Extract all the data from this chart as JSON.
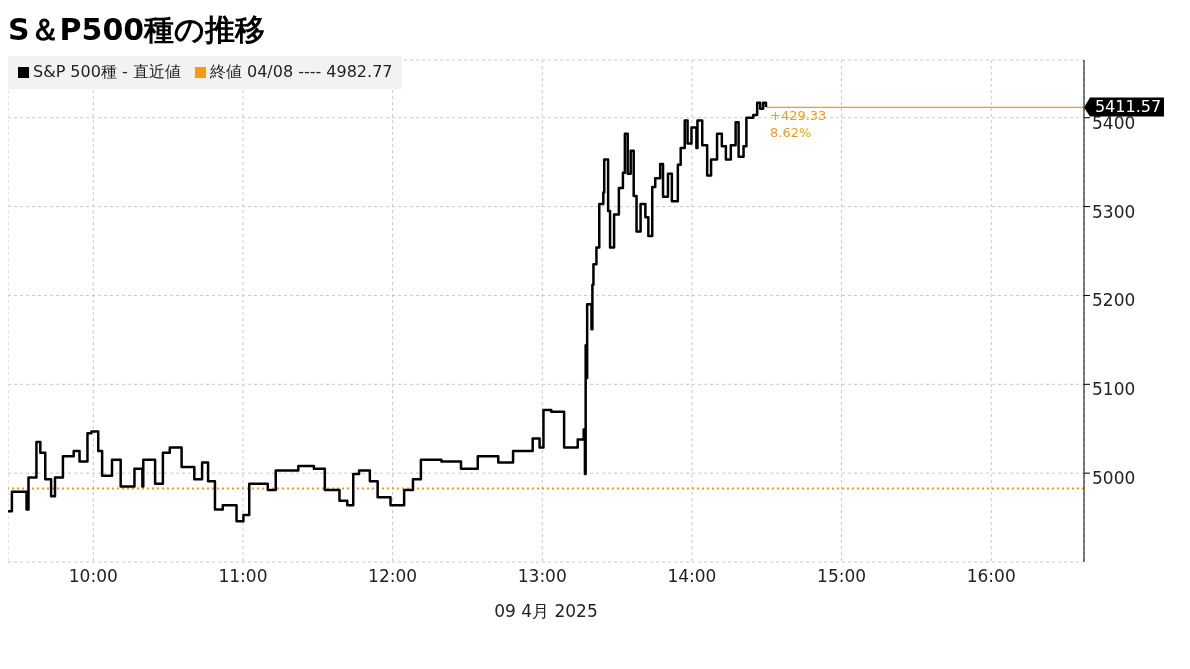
{
  "chart_data": {
    "type": "step",
    "title": "S＆P500種の推移",
    "xlabel": "09 4月 2025",
    "x": [
      9.43,
      9.456,
      9.554,
      9.567,
      9.62,
      9.646,
      9.679,
      9.718,
      9.744,
      9.797,
      9.869,
      9.908,
      9.961,
      9.987,
      10.033,
      10.059,
      10.125,
      10.183,
      10.275,
      10.328,
      10.334,
      10.413,
      10.465,
      10.511,
      10.59,
      10.675,
      10.727,
      10.767,
      10.813,
      10.865,
      10.957,
      11.003,
      11.042,
      11.166,
      11.219,
      11.37,
      11.474,
      11.547,
      11.645,
      11.697,
      11.737,
      11.776,
      11.848,
      11.9,
      11.986,
      12.077,
      12.136,
      12.189,
      12.326,
      12.457,
      12.569,
      12.706,
      12.805,
      12.936,
      12.982,
      13.008,
      13.06,
      13.146,
      13.237,
      13.277,
      13.285,
      13.29,
      13.296,
      13.3,
      13.329,
      13.335,
      13.342,
      13.362,
      13.381,
      13.408,
      13.414,
      13.44,
      13.453,
      13.48,
      13.512,
      13.539,
      13.552,
      13.571,
      13.591,
      13.611,
      13.63,
      13.657,
      13.689,
      13.709,
      13.735,
      13.755,
      13.788,
      13.807,
      13.84,
      13.866,
      13.906,
      13.925,
      13.952,
      13.971,
      13.997,
      14.03,
      14.037,
      14.069,
      14.102,
      14.128,
      14.168,
      14.2,
      14.227,
      14.26,
      14.292,
      14.312,
      14.345,
      14.364,
      14.41,
      14.436,
      14.456,
      14.476,
      14.495
    ],
    "series": [
      {
        "name": "S&P 500種 - 直近値",
        "color": "#000000",
        "values": [
          4957,
          4979,
          4959,
          4995,
          5035,
          5023,
          4993,
          4974,
          4995,
          5019,
          5025,
          5013,
          5045,
          5047,
          5025,
          4997,
          5015,
          4985,
          5005,
          4985,
          5015,
          4988,
          5023,
          5029,
          5007,
          4993,
          5012,
          4991,
          4959,
          4964,
          4946,
          4953,
          4988,
          4981,
          5003,
          5008,
          5005,
          4981,
          4969,
          4964,
          4999,
          5003,
          4991,
          4973,
          4964,
          4981,
          4993,
          5015,
          5013,
          5005,
          5019,
          5012,
          5025,
          5039,
          5029,
          5071,
          5069,
          5029,
          5038,
          5049,
          4999,
          5144,
          5107,
          5190,
          5162,
          5212,
          5235,
          5254,
          5303,
          5316,
          5353,
          5295,
          5254,
          5291,
          5321,
          5338,
          5382,
          5337,
          5363,
          5312,
          5272,
          5303,
          5288,
          5267,
          5322,
          5332,
          5348,
          5311,
          5337,
          5306,
          5347,
          5366,
          5397,
          5371,
          5389,
          5366,
          5397,
          5369,
          5335,
          5353,
          5382,
          5368,
          5353,
          5369,
          5395,
          5356,
          5368,
          5400,
          5403,
          5417,
          5410,
          5417,
          5412
        ]
      }
    ],
    "xlim": [
      9.43,
      16.62
    ],
    "xticks": [
      {
        "value": 10,
        "label": "10:00"
      },
      {
        "value": 11,
        "label": "11:00"
      },
      {
        "value": 12,
        "label": "12:00"
      },
      {
        "value": 13,
        "label": "13:00"
      },
      {
        "value": 14,
        "label": "14:00"
      },
      {
        "value": 15,
        "label": "15:00"
      },
      {
        "value": 16,
        "label": "16:00"
      }
    ],
    "ylim": [
      4900,
      5465
    ],
    "yticks": [
      5000,
      5100,
      5200,
      5300,
      5400
    ],
    "ref_lines": [
      {
        "axis": "y",
        "value": 4982.77,
        "label": "終値 04/08 ---- 4982.77",
        "color": "#f39c12",
        "line_style": "dotted"
      },
      {
        "axis": "y",
        "value": 5411.57,
        "label": "5411.57",
        "color": "#f39c12",
        "line_style": "solid"
      }
    ],
    "annotations": [
      {
        "text": "+429.33",
        "x": 14.495,
        "y": 5411.57
      },
      {
        "text": "8.62%",
        "x": 14.495,
        "y": 5411.57
      }
    ],
    "grid": true,
    "legend": "top left",
    "marker": "none"
  }
}
